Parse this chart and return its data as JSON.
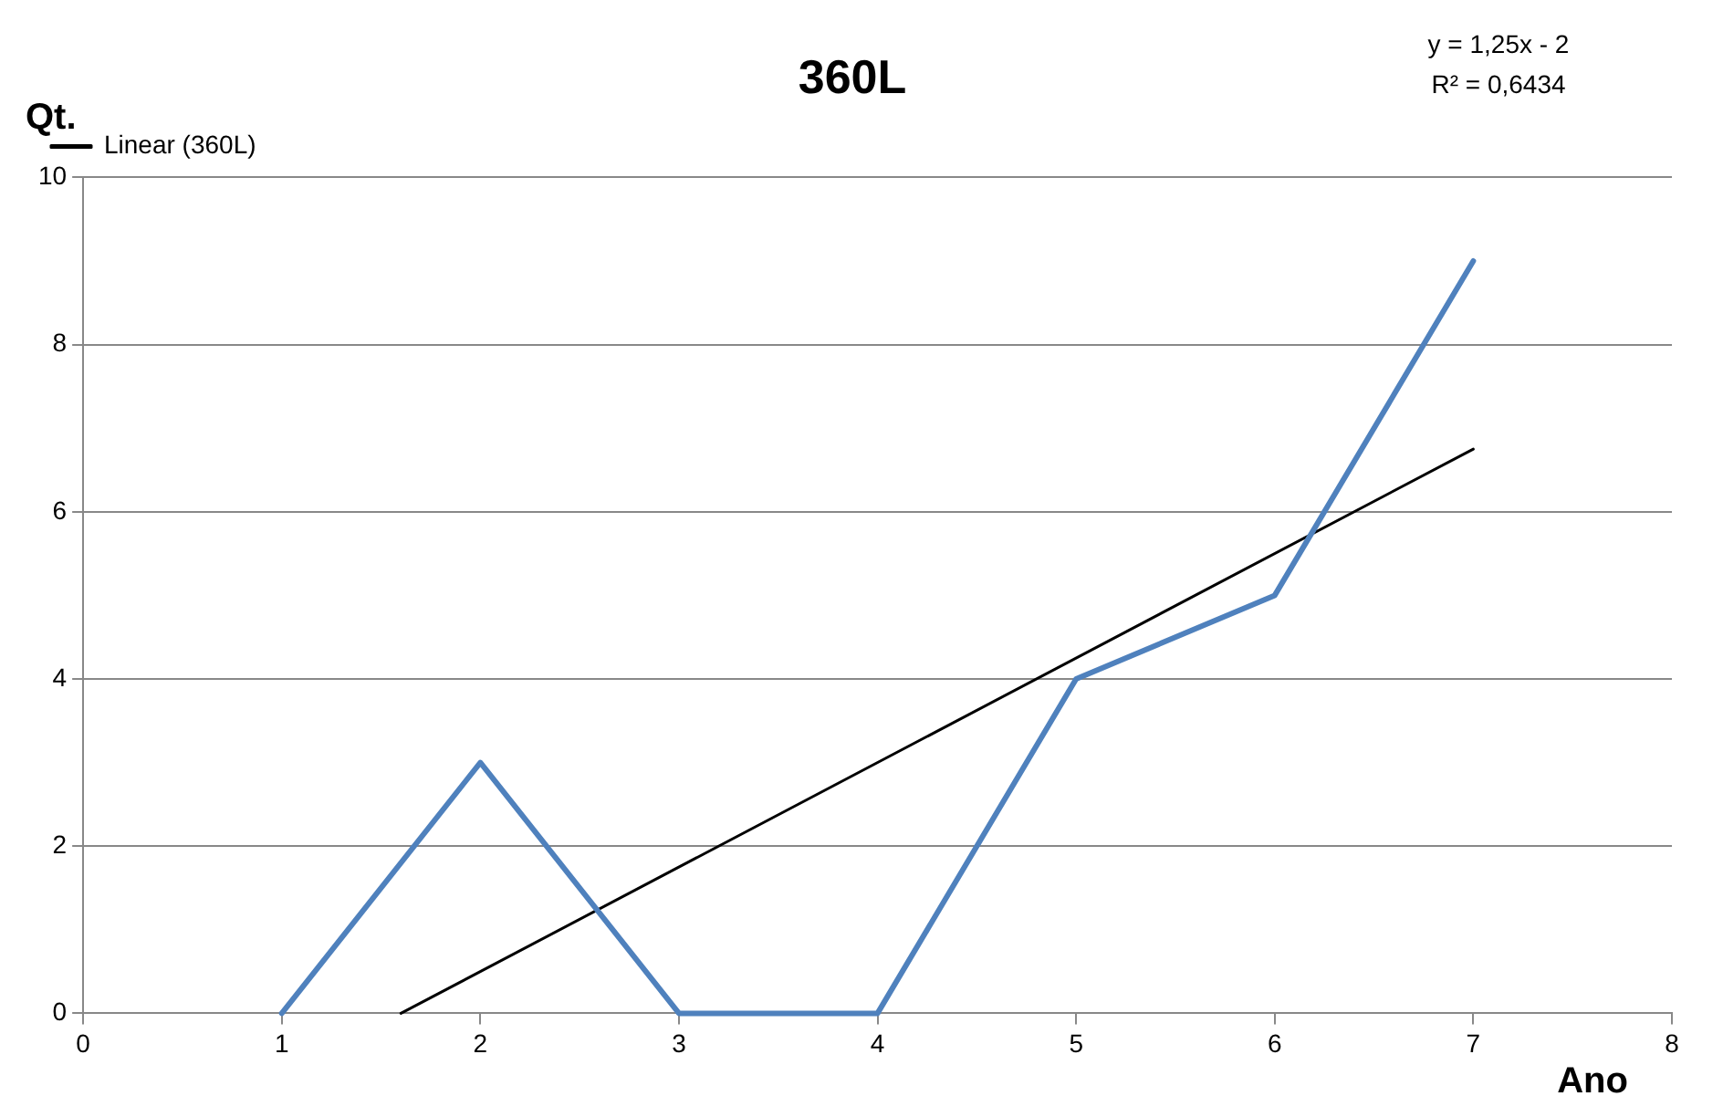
{
  "chart_data": {
    "type": "line",
    "title": "360L",
    "xlabel": "Ano",
    "ylabel": "Qt.",
    "x": [
      1,
      2,
      3,
      4,
      5,
      6,
      7
    ],
    "series": [
      {
        "color": "#4f81bd",
        "values": [
          0,
          3,
          0,
          0,
          4,
          5,
          9
        ]
      },
      {
        "name": "Linear (360L)",
        "type": "line",
        "color": "#000000",
        "x": [
          1.6,
          7
        ],
        "values": [
          0,
          6.75
        ]
      }
    ],
    "xlim": [
      0,
      8
    ],
    "xticks": [
      0,
      1,
      2,
      3,
      4,
      5,
      6,
      7,
      8
    ],
    "ylim": [
      0,
      10
    ],
    "yticks": [
      0,
      2,
      4,
      6,
      8,
      10
    ],
    "grid": "y",
    "legend": "top left",
    "marker": "none",
    "annotations": [
      "y = 1,25x - 2",
      "R² = 0,6434"
    ]
  }
}
